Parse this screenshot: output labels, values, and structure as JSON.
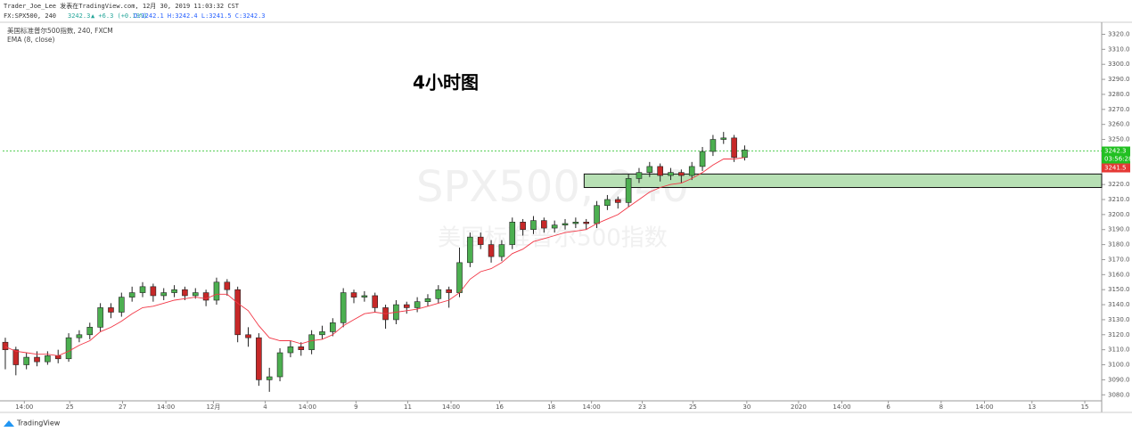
{
  "header": {
    "line1": "Trader_Joe_Lee 发表在TradingView.com, 12月 30, 2019 11:03:32 CST",
    "symbol": "FX:SPX500, 240",
    "quote": "3242.3",
    "change": "▲ +6.3 (+0.19%)",
    "ohlc_text": "O:3242.1 H:3242.4 L:3241.5 C:3242.3"
  },
  "legend": {
    "series": "美国标准普尔500指数, 240, FXCM",
    "indicator": "EMA (8, close)"
  },
  "footer": "TradingView",
  "chart_data": {
    "type": "candlestick",
    "annotation": "4小时图",
    "watermark": [
      "SPX500, 240",
      "美国标准普尔500指数"
    ],
    "up_color": "#4caf50",
    "down_color": "#c62828",
    "ema_color": "#f23645",
    "zone_color": "#b7e0b4",
    "last_color": "#22c022",
    "bid_color": "#e53935",
    "ohlc": [
      [
        3115,
        3118,
        3097,
        3110
      ],
      [
        3110,
        3112,
        3093,
        3100
      ],
      [
        3100,
        3108,
        3097,
        3105
      ],
      [
        3105,
        3109,
        3099,
        3102
      ],
      [
        3102,
        3109,
        3100,
        3106
      ],
      [
        3106,
        3110,
        3101,
        3104
      ],
      [
        3104,
        3121,
        3102,
        3118
      ],
      [
        3118,
        3123,
        3115,
        3120
      ],
      [
        3120,
        3128,
        3117,
        3125
      ],
      [
        3125,
        3141,
        3122,
        3138
      ],
      [
        3138,
        3141,
        3131,
        3135
      ],
      [
        3135,
        3148,
        3132,
        3145
      ],
      [
        3145,
        3152,
        3142,
        3148
      ],
      [
        3148,
        3155,
        3145,
        3152
      ],
      [
        3152,
        3154,
        3142,
        3146
      ],
      [
        3146,
        3151,
        3143,
        3148
      ],
      [
        3148,
        3153,
        3145,
        3150
      ],
      [
        3150,
        3152,
        3143,
        3146
      ],
      [
        3146,
        3151,
        3144,
        3148
      ],
      [
        3148,
        3150,
        3139,
        3143
      ],
      [
        3143,
        3158,
        3140,
        3155
      ],
      [
        3155,
        3157,
        3146,
        3150
      ],
      [
        3150,
        3152,
        3115,
        3120
      ],
      [
        3120,
        3125,
        3112,
        3118
      ],
      [
        3118,
        3121,
        3086,
        3090
      ],
      [
        3090,
        3098,
        3082,
        3092
      ],
      [
        3092,
        3111,
        3089,
        3108
      ],
      [
        3108,
        3116,
        3105,
        3112
      ],
      [
        3112,
        3115,
        3106,
        3110
      ],
      [
        3110,
        3123,
        3107,
        3120
      ],
      [
        3120,
        3126,
        3117,
        3122
      ],
      [
        3122,
        3131,
        3119,
        3128
      ],
      [
        3128,
        3151,
        3125,
        3148
      ],
      [
        3148,
        3150,
        3141,
        3145
      ],
      [
        3145,
        3149,
        3142,
        3146
      ],
      [
        3146,
        3148,
        3135,
        3138
      ],
      [
        3138,
        3140,
        3124,
        3130
      ],
      [
        3130,
        3143,
        3127,
        3140
      ],
      [
        3140,
        3142,
        3134,
        3138
      ],
      [
        3138,
        3145,
        3135,
        3142
      ],
      [
        3142,
        3147,
        3139,
        3144
      ],
      [
        3144,
        3153,
        3141,
        3150
      ],
      [
        3150,
        3152,
        3138,
        3148
      ],
      [
        3148,
        3178,
        3145,
        3168
      ],
      [
        3168,
        3188,
        3165,
        3185
      ],
      [
        3185,
        3188,
        3177,
        3180
      ],
      [
        3180,
        3183,
        3168,
        3172
      ],
      [
        3172,
        3183,
        3169,
        3180
      ],
      [
        3180,
        3198,
        3177,
        3195
      ],
      [
        3195,
        3197,
        3186,
        3190
      ],
      [
        3190,
        3199,
        3187,
        3196
      ],
      [
        3196,
        3198,
        3188,
        3191
      ],
      [
        3191,
        3196,
        3188,
        3193
      ],
      [
        3193,
        3197,
        3190,
        3194
      ],
      [
        3194,
        3198,
        3191,
        3195
      ],
      [
        3195,
        3197,
        3190,
        3194
      ],
      [
        3194,
        3209,
        3191,
        3206
      ],
      [
        3206,
        3213,
        3203,
        3210
      ],
      [
        3210,
        3212,
        3204,
        3208
      ],
      [
        3208,
        3227,
        3205,
        3224
      ],
      [
        3224,
        3231,
        3221,
        3228
      ],
      [
        3228,
        3235,
        3225,
        3232
      ],
      [
        3232,
        3234,
        3222,
        3226
      ],
      [
        3226,
        3231,
        3223,
        3228
      ],
      [
        3228,
        3230,
        3221,
        3226
      ],
      [
        3226,
        3235,
        3223,
        3232
      ],
      [
        3232,
        3245,
        3229,
        3242
      ],
      [
        3242,
        3253,
        3239,
        3250
      ],
      [
        3250,
        3255,
        3247,
        3251
      ],
      [
        3251,
        3253,
        3235,
        3238
      ],
      [
        3238,
        3246,
        3236,
        3243
      ]
    ],
    "ema": [
      3112,
      3109,
      3108,
      3107,
      3107,
      3106,
      3109,
      3113,
      3116,
      3122,
      3125,
      3129,
      3134,
      3138,
      3139,
      3141,
      3143,
      3144,
      3145,
      3144,
      3147,
      3147,
      3141,
      3136,
      3126,
      3118,
      3116,
      3116,
      3114,
      3116,
      3117,
      3120,
      3126,
      3130,
      3134,
      3135,
      3134,
      3135,
      3136,
      3137,
      3139,
      3141,
      3143,
      3148,
      3157,
      3162,
      3164,
      3168,
      3174,
      3177,
      3182,
      3184,
      3186,
      3188,
      3189,
      3190,
      3194,
      3197,
      3200,
      3205,
      3210,
      3215,
      3218,
      3220,
      3221,
      3224,
      3228,
      3233,
      3237,
      3237,
      3238
    ],
    "xlim": [
      -0.25,
      103.8
    ],
    "xticks": [
      {
        "value": 1.8,
        "label": "14:00"
      },
      {
        "value": 6.1,
        "label": "25"
      },
      {
        "value": 11.1,
        "label": "27"
      },
      {
        "value": 15.2,
        "label": "14:00"
      },
      {
        "value": 19.7,
        "label": "12月"
      },
      {
        "value": 24.6,
        "label": "4"
      },
      {
        "value": 28.6,
        "label": "14:00"
      },
      {
        "value": 33.2,
        "label": "9"
      },
      {
        "value": 38.1,
        "label": "11"
      },
      {
        "value": 42.2,
        "label": "14:00"
      },
      {
        "value": 46.8,
        "label": "16"
      },
      {
        "value": 51.7,
        "label": "18"
      },
      {
        "value": 55.5,
        "label": "14:00"
      },
      {
        "value": 60.3,
        "label": "23"
      },
      {
        "value": 65.1,
        "label": "25"
      },
      {
        "value": 70.2,
        "label": "30"
      },
      {
        "value": 75.1,
        "label": "2020"
      },
      {
        "value": 79.2,
        "label": "14:00"
      },
      {
        "value": 83.6,
        "label": "6"
      },
      {
        "value": 88.6,
        "label": "8"
      },
      {
        "value": 92.7,
        "label": "14:00"
      },
      {
        "value": 97.2,
        "label": "13"
      },
      {
        "value": 102.2,
        "label": "15"
      }
    ],
    "ylim": [
      3076,
      3328
    ],
    "yticks": [
      {
        "value": 3080,
        "label": "3080.0"
      },
      {
        "value": 3090,
        "label": "3090.0"
      },
      {
        "value": 3100,
        "label": "3100.0"
      },
      {
        "value": 3110,
        "label": "3110.0"
      },
      {
        "value": 3120,
        "label": "3120.0"
      },
      {
        "value": 3130,
        "label": "3130.0"
      },
      {
        "value": 3140,
        "label": "3140.0"
      },
      {
        "value": 3150,
        "label": "3150.0"
      },
      {
        "value": 3160,
        "label": "3160.0"
      },
      {
        "value": 3170,
        "label": "3170.0"
      },
      {
        "value": 3180,
        "label": "3180.0"
      },
      {
        "value": 3190,
        "label": "3190.0"
      },
      {
        "value": 3200,
        "label": "3200.0"
      },
      {
        "value": 3210,
        "label": "3210.0"
      },
      {
        "value": 3220,
        "label": "3220.0"
      },
      {
        "value": 3230,
        "label": "3230.0"
      },
      {
        "value": 3240,
        "label": "3240.0"
      },
      {
        "value": 3250,
        "label": "3250.0"
      },
      {
        "value": 3260,
        "label": "3260.0"
      },
      {
        "value": 3270,
        "label": "3270.0"
      },
      {
        "value": 3280,
        "label": "3280.0"
      },
      {
        "value": 3290,
        "label": "3290.0"
      },
      {
        "value": 3300,
        "label": "3300.0"
      },
      {
        "value": 3310,
        "label": "3310.0"
      },
      {
        "value": 3320,
        "label": "3320.0"
      }
    ],
    "last_price": 3242.3,
    "countdown": "03:56:28",
    "bid": 3241.5,
    "zone": {
      "low": 3218,
      "high": 3227,
      "x_start": 54.8
    }
  }
}
